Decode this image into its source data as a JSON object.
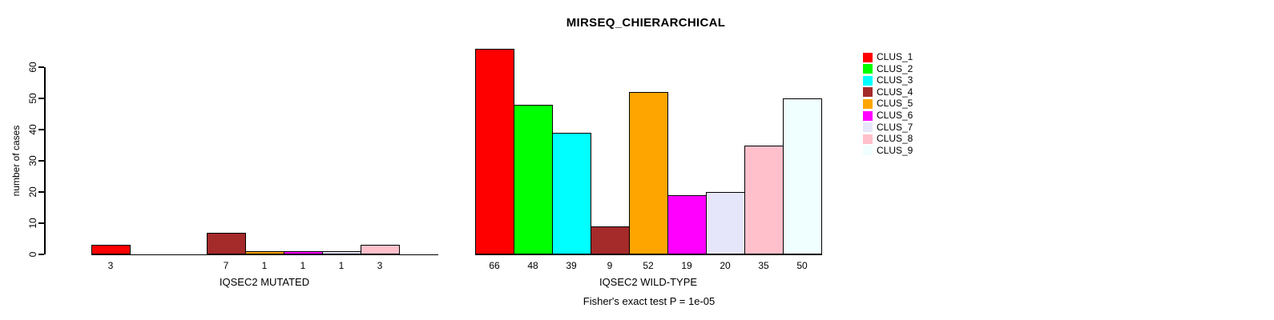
{
  "title": "MIRSEQ_CHIERARCHICAL",
  "footer_annotation": "Fisher's exact test P = 1e-05",
  "y_axis": {
    "label": "number of cases",
    "ticks": [
      0,
      10,
      20,
      30,
      40,
      50,
      60
    ]
  },
  "legend": {
    "items": [
      {
        "label": "CLUS_1",
        "color": "#FF0000"
      },
      {
        "label": "CLUS_2",
        "color": "#00FF00"
      },
      {
        "label": "CLUS_3",
        "color": "#00FFFF"
      },
      {
        "label": "CLUS_4",
        "color": "#A52A2A"
      },
      {
        "label": "CLUS_5",
        "color": "#FFA500"
      },
      {
        "label": "CLUS_6",
        "color": "#FF00FF"
      },
      {
        "label": "CLUS_7",
        "color": "#E6E6FA"
      },
      {
        "label": "CLUS_8",
        "color": "#FFC0CB"
      },
      {
        "label": "CLUS_9",
        "color": "#F0FFFF"
      }
    ]
  },
  "chart_data": {
    "type": "bar",
    "title": "MIRSEQ_CHIERARCHICAL",
    "ylabel": "number of cases",
    "xlabel": "",
    "ylim": [
      0,
      68
    ],
    "yticks": [
      0,
      10,
      20,
      30,
      40,
      50,
      60
    ],
    "grid": false,
    "legend_position": "right",
    "categories": [
      "CLUS_1",
      "CLUS_2",
      "CLUS_3",
      "CLUS_4",
      "CLUS_5",
      "CLUS_6",
      "CLUS_7",
      "CLUS_8",
      "CLUS_9"
    ],
    "bar_colors": [
      "#FF0000",
      "#00FF00",
      "#00FFFF",
      "#A52A2A",
      "#FFA500",
      "#FF00FF",
      "#E6E6FA",
      "#FFC0CB",
      "#F0FFFF"
    ],
    "series": [
      {
        "name": "IQSEC2 MUTATED",
        "values": [
          3,
          0,
          0,
          7,
          1,
          1,
          1,
          3,
          0
        ]
      },
      {
        "name": "IQSEC2 WILD-TYPE",
        "values": [
          66,
          48,
          39,
          9,
          52,
          19,
          20,
          35,
          50
        ]
      }
    ],
    "value_labels_shown_only_for_nonzero": true,
    "annotation": "Fisher's exact test P = 1e-05"
  }
}
